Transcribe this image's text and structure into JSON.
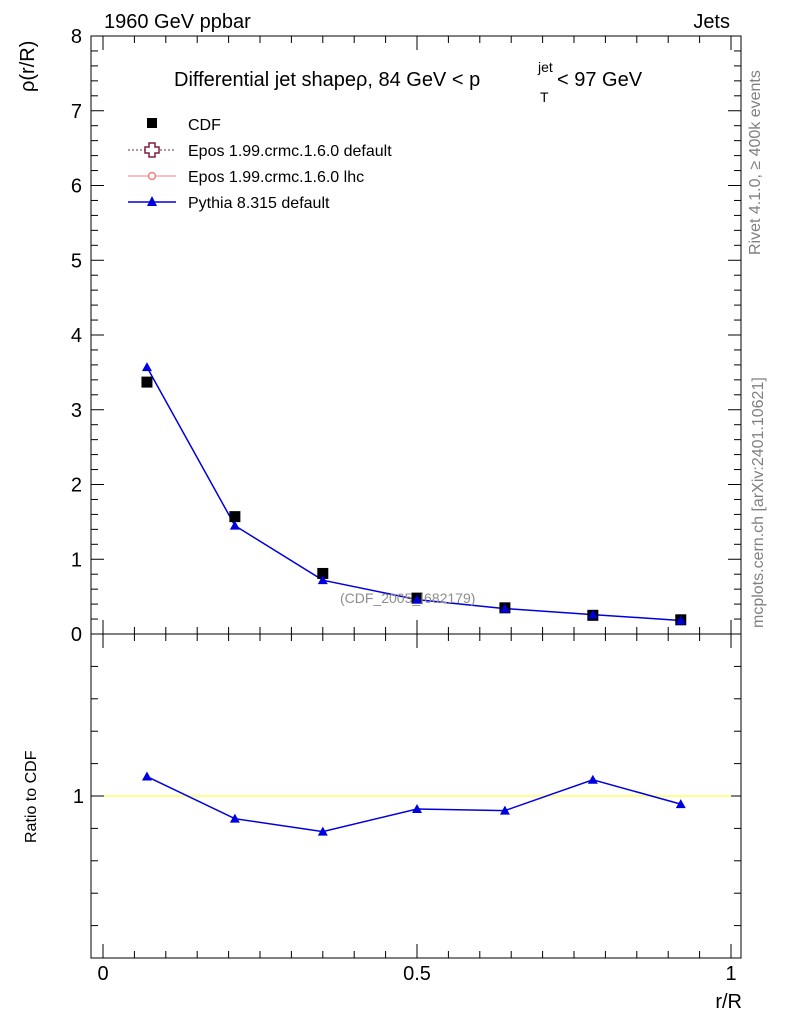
{
  "header": {
    "left": "1960 GeV ppbar",
    "right": "Jets"
  },
  "side_labels": {
    "rivet": "Rivet 4.1.0, ≥ 400k events",
    "mcplots": "mcplots.cern.ch [arXiv:2401.10621]"
  },
  "watermark": "(CDF_2005_I682179)",
  "colors": {
    "cdf": "#000000",
    "epos_default": "#7f1f3f",
    "epos_lhc": "#f08080",
    "pythia": "#0000dd",
    "ratio_band": "#ffff66"
  },
  "chart_data": [
    {
      "type": "scatter",
      "title": {
        "main": "Differential jet shapeρ, 84 GeV < p",
        "sup": "jet",
        "sub": "T",
        "tail": " < 97 GeV"
      },
      "ylabel": "ρ(r/R)",
      "xlim": [
        0,
        1
      ],
      "ylim": [
        0,
        8
      ],
      "yticks": [
        0,
        1,
        2,
        3,
        4,
        5,
        6,
        7,
        8
      ],
      "x": [
        0.07,
        0.21,
        0.35,
        0.5,
        0.64,
        0.78,
        0.92
      ],
      "series": [
        {
          "name": "CDF",
          "marker": "square",
          "values": [
            3.37,
            1.57,
            0.81,
            0.48,
            0.35,
            0.25,
            0.19
          ]
        },
        {
          "name": "Epos 1.99.crmc.1.6.0 default",
          "marker": "open-cross",
          "values": []
        },
        {
          "name": "Epos 1.99.crmc.1.6.0 lhc",
          "marker": "small-circle",
          "values": []
        },
        {
          "name": "Pythia 8.315 default",
          "marker": "triangle",
          "values": [
            3.57,
            1.45,
            0.72,
            0.46,
            0.34,
            0.26,
            0.18
          ]
        }
      ]
    },
    {
      "type": "line",
      "ylabel": "Ratio to CDF",
      "xlabel": "r/R",
      "xlim": [
        0,
        1
      ],
      "ylim": [
        0.5,
        1.5
      ],
      "yticks": [
        1
      ],
      "xticks": [
        0,
        0.5,
        1
      ],
      "xtick_labels": [
        "0",
        "0.5",
        "1"
      ],
      "x": [
        0.07,
        0.21,
        0.35,
        0.5,
        0.64,
        0.78,
        0.92
      ],
      "series": [
        {
          "name": "Pythia 8.315 default / CDF",
          "values": [
            1.06,
            0.93,
            0.89,
            0.96,
            0.955,
            1.05,
            0.975
          ]
        }
      ]
    }
  ]
}
